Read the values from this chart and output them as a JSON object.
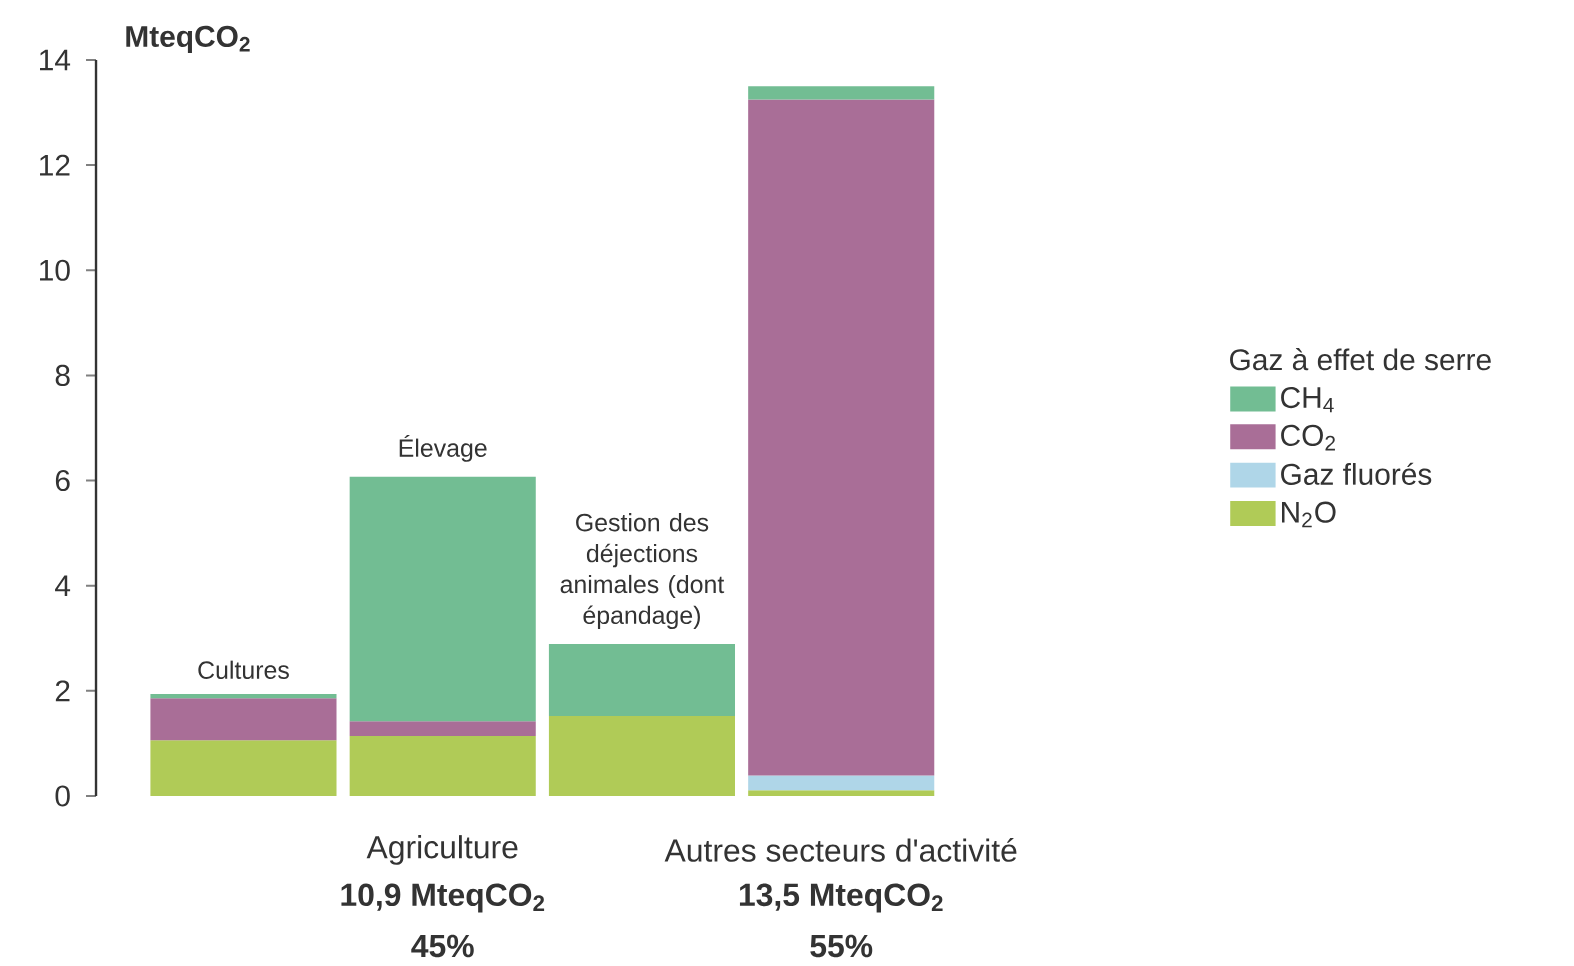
{
  "chart_data": {
    "type": "bar",
    "stacked": true,
    "categories": [
      null,
      null,
      null,
      null
    ],
    "series": [
      {
        "name": "N$_{2}$O",
        "color": "#b0cb57",
        "values": [
          1.06,
          1.14,
          1.52,
          0.11
        ]
      },
      {
        "name": "Gaz fluorés",
        "color": "#afd6e8",
        "values": [
          null,
          null,
          null,
          0.28
        ]
      },
      {
        "name": "CO$_{2}$",
        "color": "#a96e97",
        "values": [
          0.8,
          0.28,
          null,
          12.86
        ]
      },
      {
        "name": "CH$_{4}$",
        "color": "#72bd93",
        "values": [
          0.08,
          4.65,
          1.37,
          0.25
        ]
      }
    ],
    "ylabel": "MteqCO$_{2}$",
    "legend_title": "Gaz à effet de serre",
    "legend": "right",
    "ylim": [
      0,
      14
    ],
    "yticks": [
      0,
      2,
      4,
      6,
      8,
      10,
      12,
      14
    ],
    "grid": false,
    "annotations": [
      "Cultures",
      "Élevage",
      "Gestion des déjections animales (dont épandage)",
      "Agriculture",
      "10,9 MteqCO$_{2}$",
      "45%",
      "Autres secteurs d'activité",
      "13,5 MteqCO$_{2}$",
      "55%"
    ]
  }
}
